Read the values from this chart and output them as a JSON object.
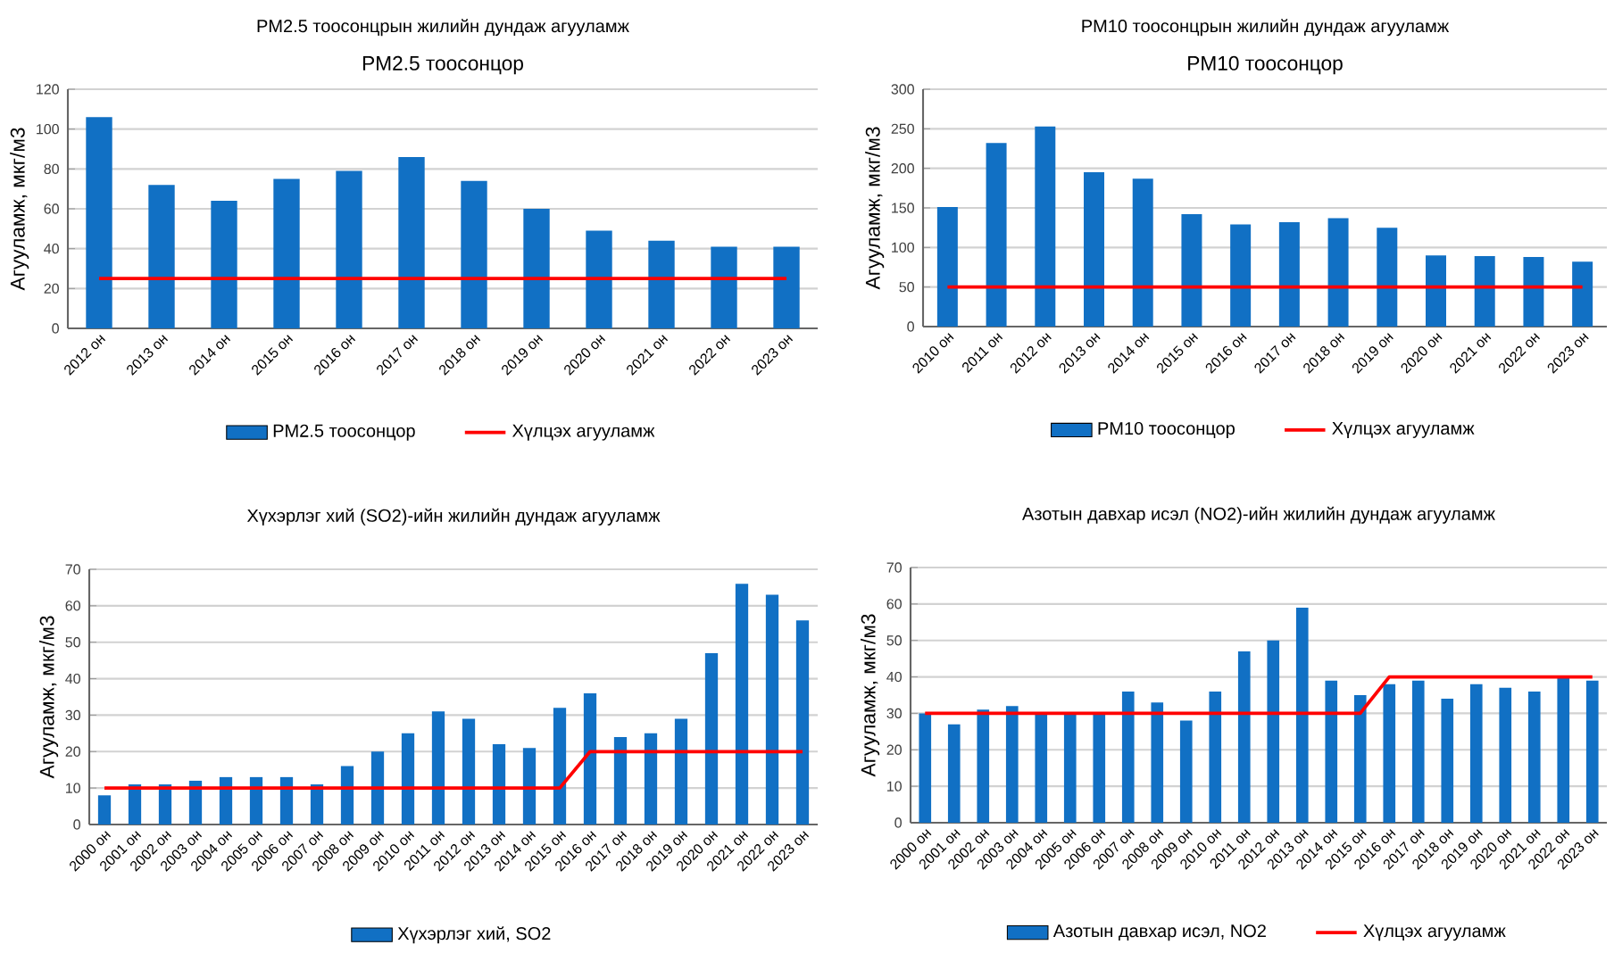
{
  "chart_data": [
    {
      "type": "bar",
      "title": "PM2.5 тоосонцрын жилийн дундаж агууламж",
      "subtitle": "PM2.5 тоосонцор",
      "ylabel": "Агууламж, мкг/м3",
      "categories": [
        "2012 он",
        "2013 он",
        "2014 он",
        "2015 он",
        "2016 он",
        "2017 он",
        "2018 он",
        "2019 он",
        "2020 он",
        "2021 он",
        "2022 он",
        "2023 он"
      ],
      "series": [
        {
          "name": "PM2.5 тоосонцор",
          "color": "#1170c4",
          "values": [
            106,
            72,
            64,
            75,
            79,
            86,
            74,
            60,
            49,
            44,
            41,
            41
          ]
        },
        {
          "name": "Хүлцэх агууламж",
          "type": "line",
          "color": "#ff0000",
          "values": [
            25,
            25,
            25,
            25,
            25,
            25,
            25,
            25,
            25,
            25,
            25,
            25
          ]
        }
      ],
      "ylim": [
        0,
        120
      ],
      "yticks": [
        0,
        20,
        40,
        60,
        80,
        100,
        120
      ],
      "grid": "y",
      "legend": "bottom"
    },
    {
      "type": "bar",
      "title": "PM10 тоосонцрын жилийн дундаж агууламж",
      "subtitle": "PM10 тоосонцор",
      "ylabel": "Агууламж, мкг/м3",
      "categories": [
        "2010 он",
        "2011 он",
        "2012 он",
        "2013 он",
        "2014 он",
        "2015 он",
        "2016 он",
        "2017 он",
        "2018 он",
        "2019 он",
        "2020 он",
        "2021 он",
        "2022 он",
        "2023 он"
      ],
      "series": [
        {
          "name": "PM10 тоосонцор",
          "color": "#1170c4",
          "values": [
            151,
            232,
            253,
            195,
            187,
            142,
            129,
            132,
            137,
            125,
            90,
            89,
            88,
            82
          ]
        },
        {
          "name": "Хүлцэх агууламж",
          "type": "line",
          "color": "#ff0000",
          "values": [
            50,
            50,
            50,
            50,
            50,
            50,
            50,
            50,
            50,
            50,
            50,
            50,
            50,
            50
          ]
        }
      ],
      "ylim": [
        0,
        300
      ],
      "yticks": [
        0,
        50,
        100,
        150,
        200,
        250,
        300
      ],
      "grid": "y",
      "legend": "bottom"
    },
    {
      "type": "bar",
      "title": "Хүхэрлэг хий (SO2)-ийн жилийн дундаж агууламж",
      "ylabel": "Агууламж, мкг/м3",
      "categories": [
        "2000 он",
        "2001 он",
        "2002 он",
        "2003 он",
        "2004 он",
        "2005 он",
        "2006 он",
        "2007 он",
        "2008 он",
        "2009 он",
        "2010 он",
        "2011 он",
        "2012 он",
        "2013 он",
        "2014 он",
        "2015 он",
        "2016 он",
        "2017 он",
        "2018 он",
        "2019 он",
        "2020 он",
        "2021 он",
        "2022 он",
        "2023 он"
      ],
      "series": [
        {
          "name": "Хүхэрлэг хий, SO2",
          "color": "#1170c4",
          "values": [
            8,
            11,
            11,
            12,
            13,
            13,
            13,
            11,
            16,
            20,
            25,
            31,
            29,
            22,
            21,
            32,
            36,
            24,
            25,
            29,
            47,
            66,
            63,
            56
          ]
        },
        {
          "type": "line",
          "color": "#ff0000",
          "values": [
            10,
            10,
            10,
            10,
            10,
            10,
            10,
            10,
            10,
            10,
            10,
            10,
            10,
            10,
            10,
            10,
            20,
            20,
            20,
            20,
            20,
            20,
            20,
            20
          ]
        }
      ],
      "ylim": [
        0,
        70
      ],
      "yticks": [
        0,
        10,
        20,
        30,
        40,
        50,
        60,
        70
      ],
      "grid": "y",
      "legend": "bottom"
    },
    {
      "type": "bar",
      "title": "Азотын давхар исэл (NO2)-ийн жилийн дундаж агууламж",
      "ylabel": "Агууламж, мкг/м3",
      "categories": [
        "2000 он",
        "2001 он",
        "2002 он",
        "2003 он",
        "2004 он",
        "2005 он",
        "2006 он",
        "2007 он",
        "2008 он",
        "2009 он",
        "2010 он",
        "2011 он",
        "2012 он",
        "2013 он",
        "2014 он",
        "2015 он",
        "2016 он",
        "2017 он",
        "2018 он",
        "2019 он",
        "2020 он",
        "2021 он",
        "2022 он",
        "2023 он"
      ],
      "series": [
        {
          "name": "Азотын давхар исэл, NO2",
          "color": "#1170c4",
          "values": [
            30,
            27,
            31,
            32,
            30,
            30,
            30,
            36,
            33,
            28,
            36,
            47,
            50,
            59,
            39,
            35,
            38,
            39,
            34,
            38,
            37,
            36,
            40,
            39
          ]
        },
        {
          "name": "Хүлцэх агууламж",
          "type": "line",
          "color": "#ff0000",
          "values": [
            30,
            30,
            30,
            30,
            30,
            30,
            30,
            30,
            30,
            30,
            30,
            30,
            30,
            30,
            30,
            30,
            40,
            40,
            40,
            40,
            40,
            40,
            40,
            40
          ]
        }
      ],
      "ylim": [
        0,
        70
      ],
      "yticks": [
        0,
        10,
        20,
        30,
        40,
        50,
        60,
        70
      ],
      "grid": "y",
      "legend": "bottom"
    }
  ]
}
